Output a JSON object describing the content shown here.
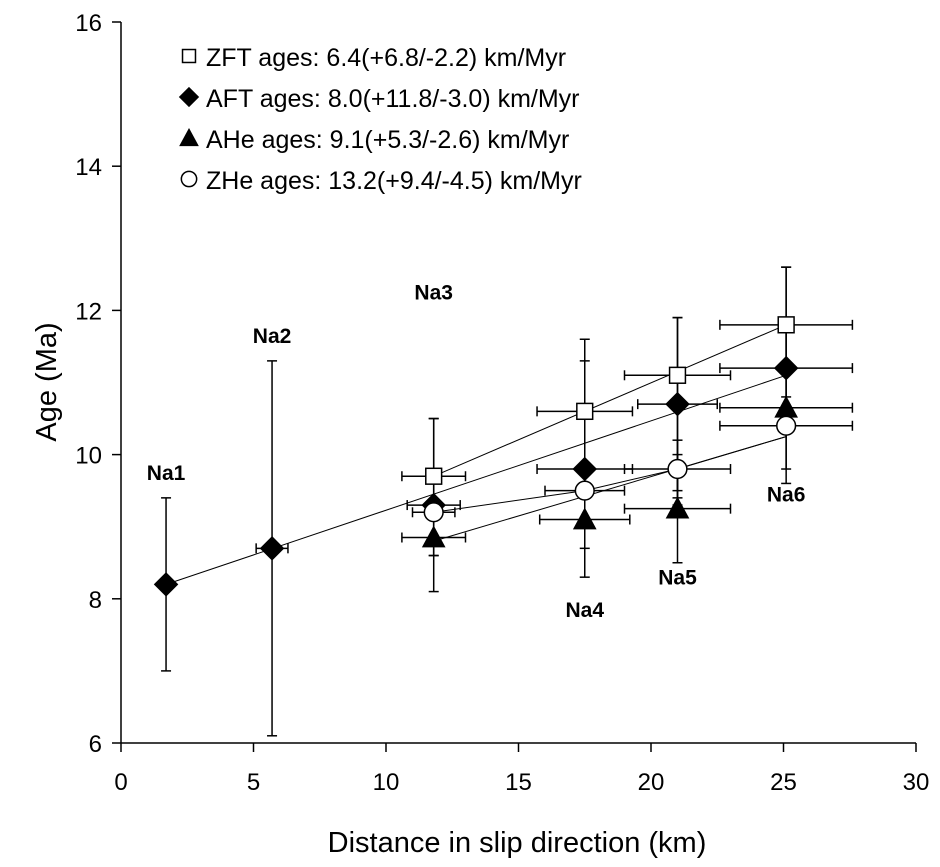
{
  "chart_data": {
    "type": "scatter",
    "title": "",
    "xlabel": "Distance in slip direction (km)",
    "ylabel": "Age (Ma)",
    "xlim": [
      0,
      30
    ],
    "ylim": [
      6,
      16
    ],
    "xticks": [
      0,
      5,
      10,
      15,
      20,
      25,
      30
    ],
    "yticks": [
      6,
      8,
      10,
      12,
      14,
      16
    ],
    "grid": false,
    "legend_position": "top-left",
    "series": [
      {
        "name": "ZFT ages: 6.4(+6.8/-2.2) km/Myr",
        "marker": "open-square",
        "points": [
          {
            "x": 11.8,
            "y": 9.7,
            "xerr": [
              1.2,
              1.2
            ],
            "yerr": [
              1.1,
              0.8
            ]
          },
          {
            "x": 17.5,
            "y": 10.6,
            "xerr": [
              1.8,
              1.8
            ],
            "yerr": [
              1.0,
              1.0
            ]
          },
          {
            "x": 21.0,
            "y": 11.1,
            "xerr": [
              2.0,
              2.0
            ],
            "yerr": [
              1.8,
              0.8
            ]
          },
          {
            "x": 25.1,
            "y": 11.8,
            "xerr": [
              2.5,
              2.5
            ],
            "yerr": [
              1.0,
              0.8
            ]
          }
        ],
        "fit": [
          [
            11.8,
            9.7
          ],
          [
            25.1,
            11.8
          ]
        ]
      },
      {
        "name": "AFT ages: 8.0(+11.8/-3.0) km/Myr",
        "marker": "filled-diamond",
        "points": [
          {
            "x": 1.7,
            "y": 8.2,
            "xerr": [
              0,
              0
            ],
            "yerr": [
              1.2,
              1.2
            ]
          },
          {
            "x": 5.7,
            "y": 8.7,
            "xerr": [
              0.6,
              0.6
            ],
            "yerr": [
              2.6,
              2.6
            ]
          },
          {
            "x": 11.8,
            "y": 9.3,
            "xerr": [
              1.0,
              1.0
            ],
            "yerr": [
              1.2,
              1.2
            ]
          },
          {
            "x": 17.5,
            "y": 9.8,
            "xerr": [
              1.8,
              1.8
            ],
            "yerr": [
              1.5,
              1.5
            ]
          },
          {
            "x": 21.0,
            "y": 10.7,
            "xerr": [
              1.5,
              1.5
            ],
            "yerr": [
              1.2,
              1.2
            ]
          },
          {
            "x": 25.1,
            "y": 11.2,
            "xerr": [
              2.5,
              2.5
            ],
            "yerr": [
              1.4,
              1.4
            ]
          }
        ],
        "fit": [
          [
            1.7,
            8.2
          ],
          [
            25.1,
            11.1
          ]
        ]
      },
      {
        "name": "AHe ages: 9.1(+5.3/-2.6) km/Myr",
        "marker": "filled-triangle",
        "points": [
          {
            "x": 11.8,
            "y": 8.85,
            "xerr": [
              1.2,
              1.2
            ],
            "yerr": [
              0.25,
              0.25
            ]
          },
          {
            "x": 17.5,
            "y": 9.1,
            "xerr": [
              1.7,
              1.7
            ],
            "yerr": [
              0.4,
              0.4
            ]
          },
          {
            "x": 21.0,
            "y": 9.25,
            "xerr": [
              2.0,
              2.0
            ],
            "yerr": [
              0.75,
              0.75
            ]
          },
          {
            "x": 25.1,
            "y": 10.65,
            "xerr": [
              2.5,
              2.5
            ],
            "yerr": [
              1.05,
              1.05
            ]
          }
        ],
        "fit": [
          [
            11.8,
            8.8
          ],
          [
            25.1,
            10.25
          ]
        ]
      },
      {
        "name": "ZHe ages: 13.2(+9.4/-4.5) km/Myr",
        "marker": "open-circle",
        "points": [
          {
            "x": 11.8,
            "y": 9.2,
            "xerr": [
              0.8,
              0.8
            ],
            "yerr": [
              0.1,
              0.1
            ]
          },
          {
            "x": 17.5,
            "y": 9.5,
            "xerr": [
              1.5,
              1.5
            ],
            "yerr": [
              0.1,
              0.1
            ]
          },
          {
            "x": 21.0,
            "y": 9.8,
            "xerr": [
              2.0,
              2.0
            ],
            "yerr": [
              0.4,
              0.4
            ]
          },
          {
            "x": 25.1,
            "y": 10.4,
            "xerr": [
              2.5,
              2.5
            ],
            "yerr": [
              0.1,
              0.1
            ]
          }
        ],
        "fit": [
          [
            11.8,
            9.2
          ],
          [
            17.5,
            9.5
          ],
          [
            21.0,
            9.8
          ],
          [
            25.1,
            10.25
          ]
        ]
      }
    ],
    "annotations": [
      {
        "text": "Na1",
        "x": 1.7,
        "y": 9.65
      },
      {
        "text": "Na2",
        "x": 5.7,
        "y": 11.55
      },
      {
        "text": "Na3",
        "x": 11.8,
        "y": 12.15
      },
      {
        "text": "Na4",
        "x": 17.5,
        "y": 7.75
      },
      {
        "text": "Na5",
        "x": 21.0,
        "y": 8.2
      },
      {
        "text": "Na6",
        "x": 25.1,
        "y": 9.35
      }
    ]
  }
}
